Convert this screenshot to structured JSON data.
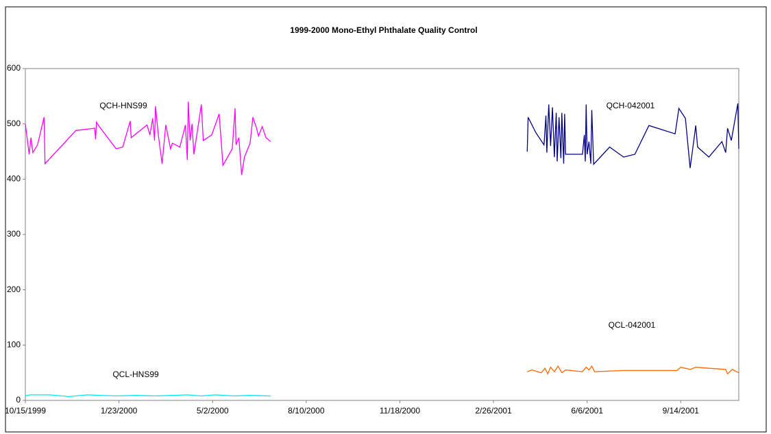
{
  "chart_data": {
    "type": "line",
    "title": "1999-2000 Mono-Ethyl Phthalate Quality Control",
    "xlim": [
      "10/15/1999",
      "11/15/2001"
    ],
    "xticks": [
      "10/15/1999",
      "1/23/2000",
      "5/2/2000",
      "8/10/2000",
      "11/18/2000",
      "2/26/2001",
      "6/6/2001",
      "9/14/2001"
    ],
    "ylim": [
      0,
      600
    ],
    "yticks": [
      0,
      100,
      200,
      300,
      400,
      500,
      600
    ],
    "grid": false,
    "series": [
      {
        "name": "QCH-HNS99",
        "color": "#ff00ff",
        "x": [
          "10/15/1999",
          "10/19/1999",
          "10/21/1999",
          "10/23/1999",
          "10/28/1999",
          "11/4/1999",
          "11/5/1999",
          "12/8/1999",
          "12/28/1999",
          "12/29/1999",
          "12/30/1999",
          "1/2/2000",
          "1/20/2000",
          "1/27/2000",
          "2/4/2000",
          "2/5/2000",
          "2/22/2000",
          "2/25/2000",
          "2/28/2000",
          "3/1/2000",
          "3/2/2000",
          "3/5/2000",
          "3/9/2000",
          "3/13/2000",
          "3/18/2000",
          "3/20/2000",
          "3/28/2000",
          "4/3/2000",
          "4/5/2000",
          "4/6/2000",
          "4/8/2000",
          "4/10/2000",
          "4/12/2000",
          "4/16/2000",
          "4/20/2000",
          "4/22/2000",
          "5/1/2000",
          "5/9/2000",
          "5/13/2000",
          "5/23/2000",
          "5/26/2000",
          "5/27/2000",
          "5/30/2000",
          "6/2/2000",
          "6/5/2000",
          "6/11/2000",
          "6/14/2000",
          "6/18/2000",
          "6/20/2000",
          "6/24/2000",
          "6/28/2000",
          "7/3/2000"
        ],
        "values": [
          500,
          445,
          475,
          448,
          462,
          512,
          428,
          488,
          492,
          472,
          503,
          495,
          455,
          458,
          505,
          475,
          498,
          480,
          510,
          470,
          532,
          480,
          428,
          498,
          455,
          465,
          458,
          498,
          435,
          540,
          470,
          500,
          445,
          490,
          535,
          470,
          480,
          518,
          425,
          455,
          528,
          462,
          475,
          408,
          440,
          465,
          512,
          492,
          478,
          495,
          475,
          468
        ]
      },
      {
        "name": "QCL-HNS99",
        "color": "#00e5ee",
        "x": [
          "10/15/1999",
          "10/20/1999",
          "11/10/1999",
          "12/1/1999",
          "12/20/1999",
          "1/20/2000",
          "2/10/2000",
          "3/1/2000",
          "3/20/2000",
          "4/5/2000",
          "4/20/2000",
          "5/5/2000",
          "5/25/2000",
          "6/10/2000",
          "7/3/2000"
        ],
        "values": [
          8,
          10,
          10,
          7,
          10,
          8,
          9,
          8,
          9,
          10,
          8,
          10,
          8,
          9,
          8
        ]
      },
      {
        "name": "QCH-042001",
        "color": "#000080",
        "x": [
          "4/3/2001",
          "4/4/2001",
          "4/12/2001",
          "4/21/2001",
          "4/23/2001",
          "4/24/2001",
          "4/26/2001",
          "4/28/2001",
          "4/30/2001",
          "5/2/2001",
          "5/4/2001",
          "5/5/2001",
          "5/7/2001",
          "5/9/2001",
          "5/10/2001",
          "5/12/2001",
          "5/13/2001",
          "5/14/2001",
          "6/1/2001",
          "6/3/2001",
          "6/4/2001",
          "6/5/2001",
          "6/6/2001",
          "6/8/2001",
          "6/10/2001",
          "6/11/2001",
          "6/13/2001",
          "6/30/2001",
          "7/15/2001",
          "7/27/2001",
          "8/11/2001",
          "9/8/2001",
          "9/12/2001",
          "9/19/2001",
          "9/24/2001",
          "9/28/2001",
          "9/30/2001",
          "10/2/2001",
          "10/14/2001",
          "10/28/2001",
          "11/1/2001",
          "11/3/2001",
          "11/7/2001",
          "11/14/2001",
          "11/15/2001"
        ],
        "values": [
          450,
          512,
          485,
          462,
          515,
          448,
          535,
          460,
          530,
          440,
          520,
          432,
          512,
          438,
          520,
          428,
          518,
          445,
          445,
          480,
          432,
          535,
          445,
          468,
          428,
          525,
          427,
          458,
          440,
          445,
          497,
          482,
          528,
          510,
          420,
          470,
          497,
          458,
          440,
          468,
          448,
          492,
          470,
          537,
          455
        ]
      },
      {
        "name": "QCL-042001",
        "color": "#ff6600",
        "x": [
          "4/3/2001",
          "4/8/2001",
          "4/18/2001",
          "4/22/2001",
          "4/25/2001",
          "4/28/2001",
          "5/2/2001",
          "5/6/2001",
          "5/10/2001",
          "5/14/2001",
          "6/1/2001",
          "6/5/2001",
          "6/8/2001",
          "6/11/2001",
          "6/14/2001",
          "7/15/2001",
          "8/15/2001",
          "9/10/2001",
          "9/14/2001",
          "9/24/2001",
          "9/30/2001",
          "10/15/2001",
          "11/1/2001",
          "11/3/2001",
          "11/8/2001",
          "11/15/2001"
        ],
        "values": [
          52,
          55,
          50,
          58,
          48,
          60,
          52,
          62,
          50,
          55,
          52,
          60,
          55,
          62,
          52,
          54,
          54,
          54,
          60,
          56,
          60,
          58,
          56,
          48,
          56,
          50
        ]
      }
    ]
  }
}
